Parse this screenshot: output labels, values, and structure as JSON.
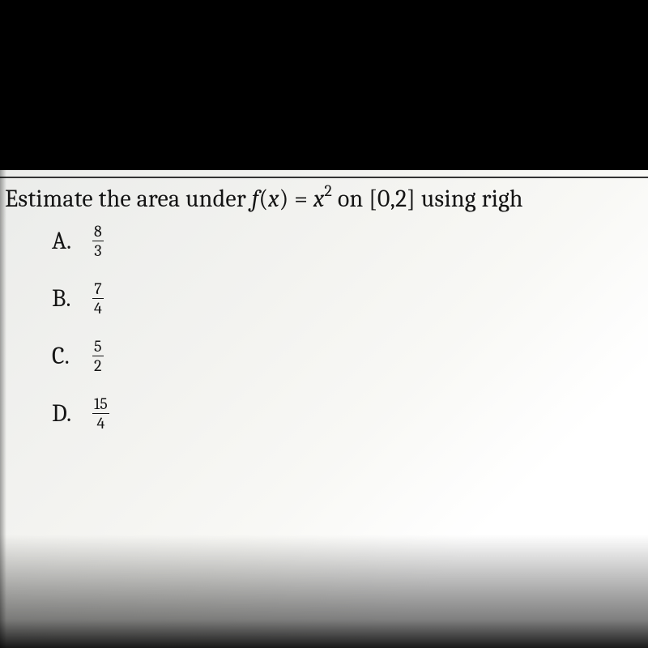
{
  "colors": {
    "page_bg": "#000000",
    "paper_bg_start": "#ebecea",
    "paper_bg_end": "#ffffff",
    "text": "#141414",
    "rule": "#333333"
  },
  "typography": {
    "question_fontsize_pt": 22,
    "choice_label_fontsize_pt": 22,
    "fraction_fontsize_pt": 15,
    "font_family": "Cambria / serif"
  },
  "question": {
    "prefix": "Estimate the area under ",
    "func_f": "f",
    "open_paren": "(",
    "var_x": "x",
    "close_paren": ")",
    "equals": " = ",
    "var_x2": "x",
    "exponent": "2",
    "on_text": " on ",
    "interval": "[0,2]",
    "using_text": " using righ"
  },
  "choices": [
    {
      "label": "A.",
      "numerator": "8",
      "denominator": "3"
    },
    {
      "label": "B.",
      "numerator": "7",
      "denominator": "4"
    },
    {
      "label": "C.",
      "numerator": "5",
      "denominator": "2"
    },
    {
      "label": "D.",
      "numerator": "15",
      "denominator": "4"
    }
  ]
}
